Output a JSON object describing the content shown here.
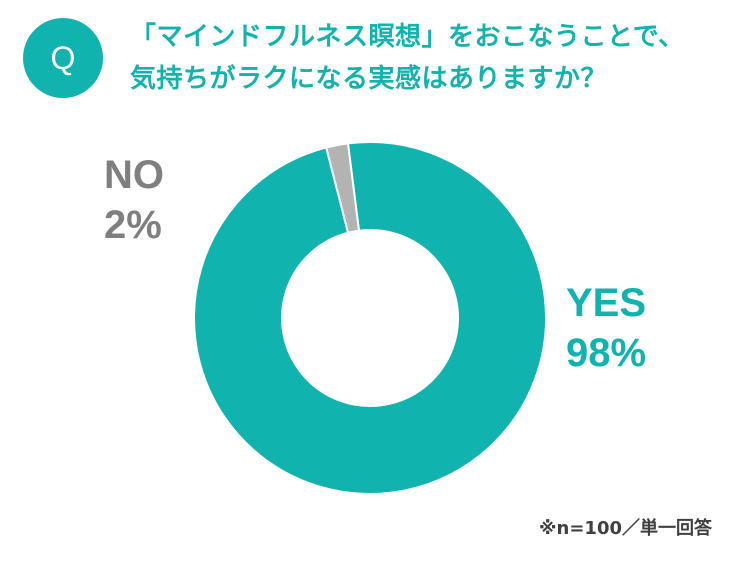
{
  "badge": "Q",
  "question": {
    "line1": "「マインドフルネス瞑想」をおこなうことで、",
    "line2": "気持ちがラクになる実感はありますか？"
  },
  "chart_data": {
    "type": "pie",
    "title": "",
    "slices": [
      {
        "name": "YES",
        "value": 98,
        "label": "98%",
        "color": "#10b3ad"
      },
      {
        "name": "NO",
        "value": 2,
        "label": "2%",
        "color": "#b3b3b3"
      }
    ]
  },
  "footnote": "※n=100／単一回答",
  "colors": {
    "accent": "#10b3ad",
    "muted": "#7f7f7f"
  }
}
